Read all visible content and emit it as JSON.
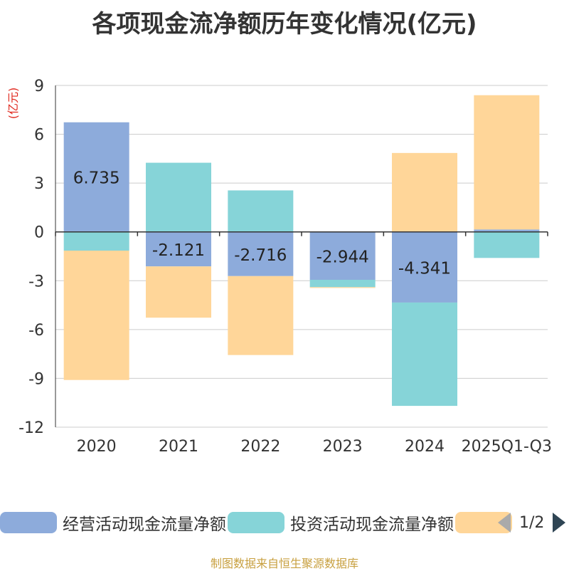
{
  "chart_data": {
    "type": "bar",
    "stacked": true,
    "title": "各项现金流净额历年变化情况(亿元)",
    "ylabel": "(亿元)",
    "ylim": [
      -12,
      9
    ],
    "yticks": [
      9,
      6,
      3,
      0,
      -3,
      -6,
      -9,
      -12
    ],
    "categories": [
      "2020",
      "2021",
      "2022",
      "2023",
      "2024",
      "2025Q1-Q3"
    ],
    "series": [
      {
        "name": "经营活动现金流量净额",
        "color": "#8dabdb",
        "values": [
          6.735,
          -2.121,
          -2.716,
          -2.944,
          -4.341,
          0.15
        ],
        "labels": [
          "6.735",
          "-2.121",
          "-2.716",
          "-2.944",
          "-4.341",
          ""
        ]
      },
      {
        "name": "投资活动现金流量净额",
        "color": "#86d4d8",
        "values": [
          -1.15,
          4.25,
          2.55,
          -0.45,
          -6.35,
          -1.6
        ]
      },
      {
        "name": "",
        "color": "#ffd699",
        "values": [
          -7.95,
          -3.15,
          -4.85,
          -0.05,
          4.85,
          8.25
        ]
      }
    ],
    "legend_position": "bottom"
  },
  "pager": {
    "text": "1/2"
  },
  "footer": "制图数据来自恒生聚源数据库"
}
